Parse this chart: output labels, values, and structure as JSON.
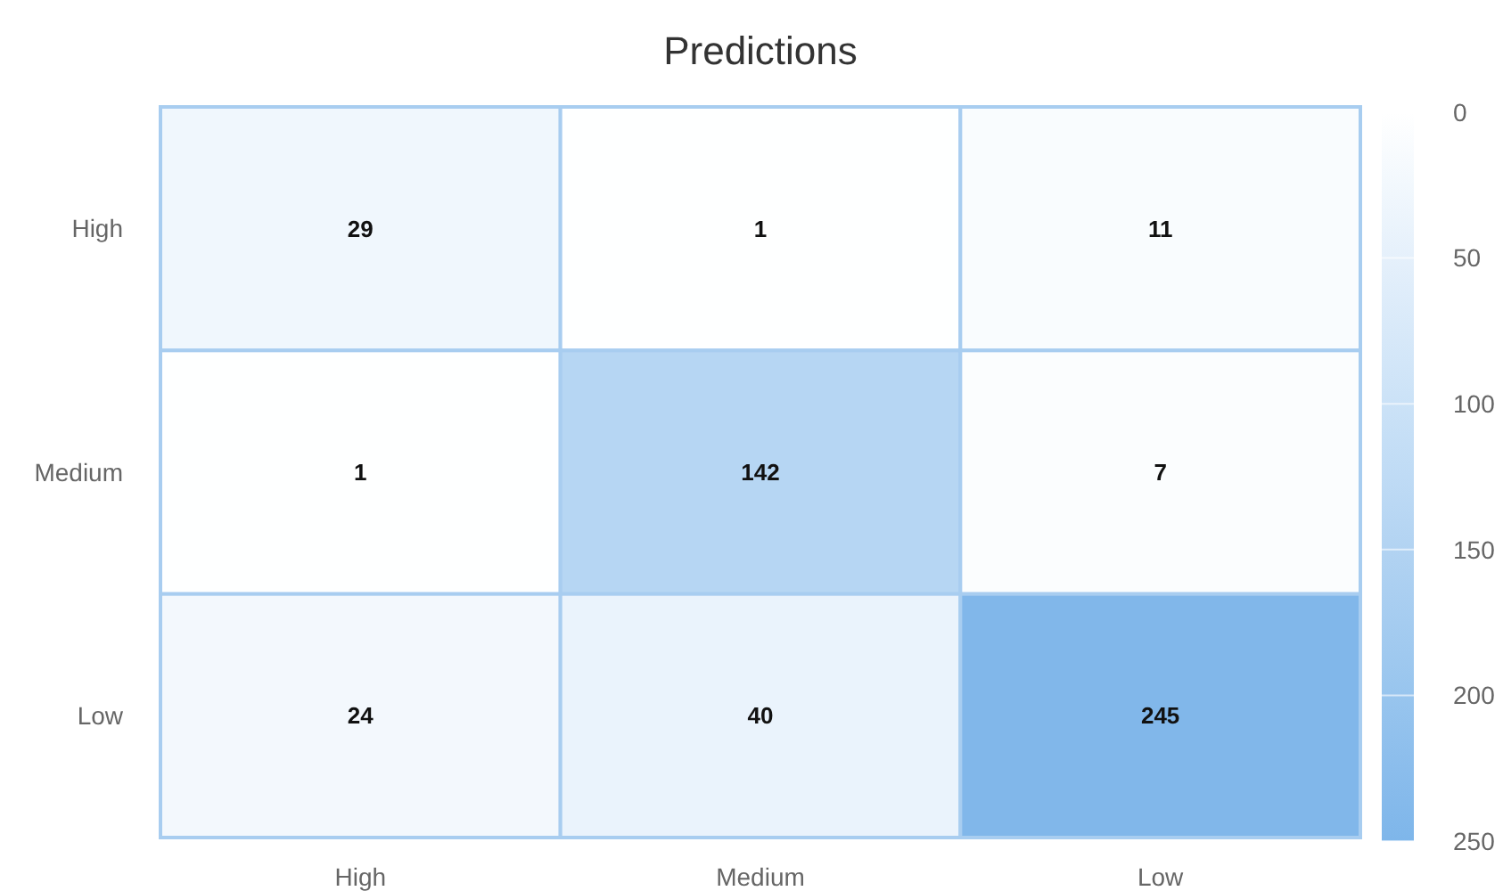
{
  "chart_data": {
    "type": "heatmap",
    "title": "Predictions",
    "categories": [
      "High",
      "Medium",
      "Low"
    ],
    "y_categories": [
      "High",
      "Medium",
      "Low"
    ],
    "cells": [
      [
        29,
        1,
        11
      ],
      [
        1,
        142,
        7
      ],
      [
        24,
        40,
        245
      ]
    ],
    "clim": [
      0,
      250
    ],
    "cticks": [
      0,
      50,
      100,
      150,
      200,
      250
    ],
    "data_labels": true
  }
}
